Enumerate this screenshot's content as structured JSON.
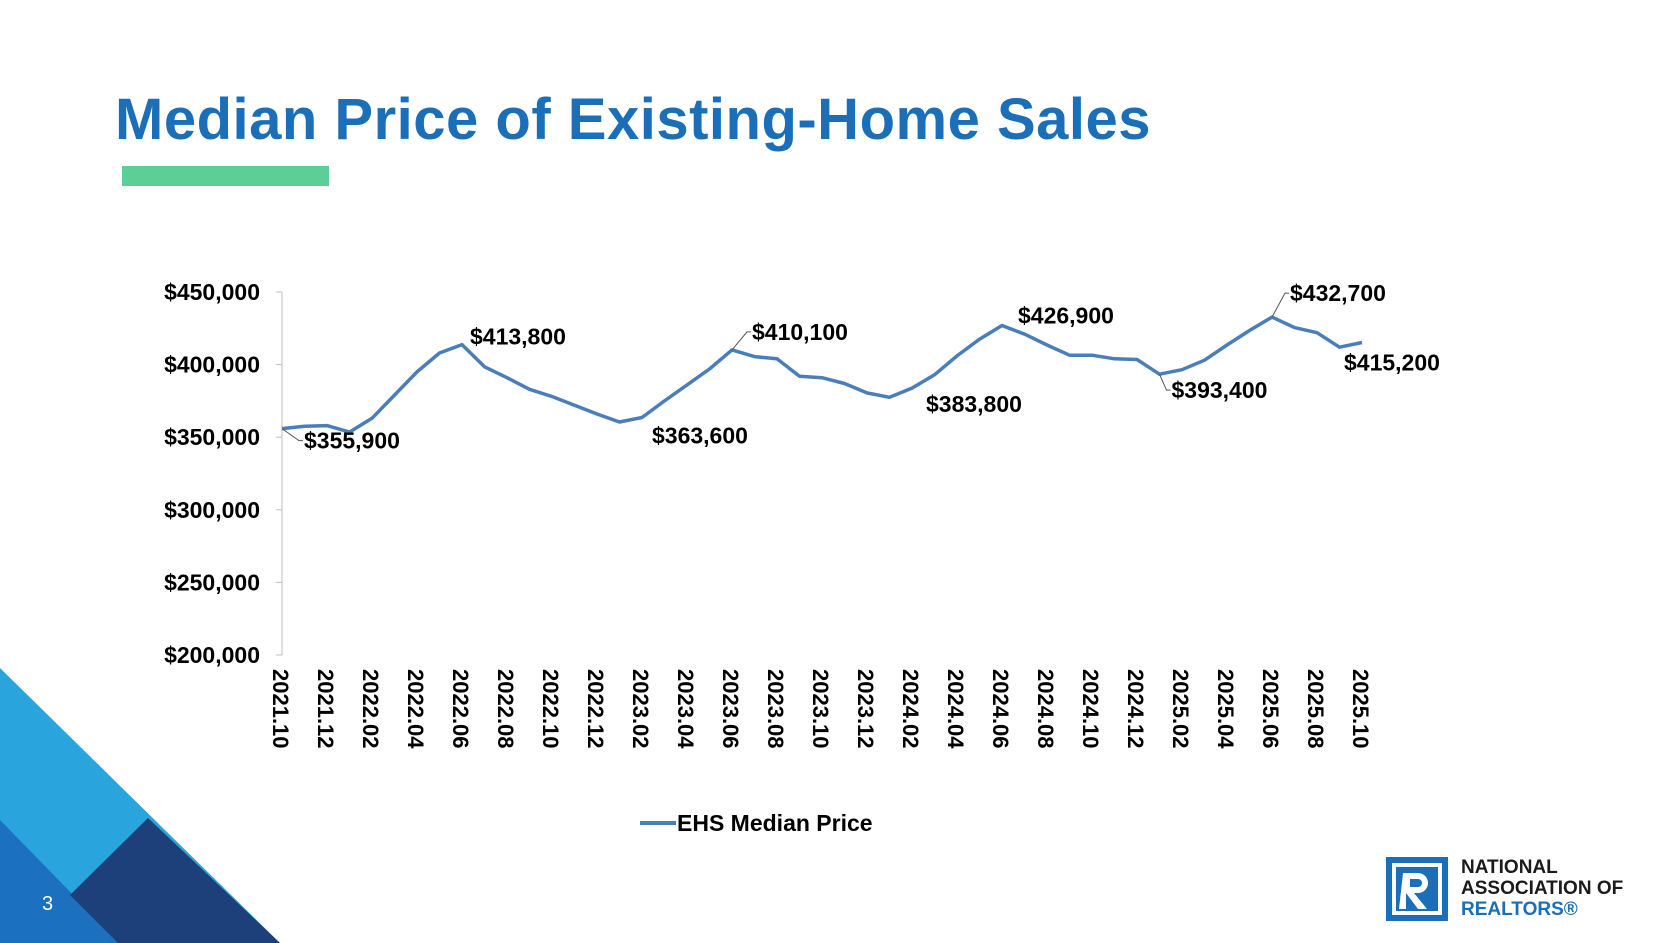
{
  "slide": {
    "title": "Median Price of Existing-Home Sales",
    "page_number": "3",
    "accent_color": "#5ccf96",
    "title_color": "#1a6fb8"
  },
  "logo": {
    "line1": "NATIONAL",
    "line2": "ASSOCIATION OF",
    "line3": "REALTORS®"
  },
  "chart_data": {
    "type": "line",
    "title": "",
    "xlabel": "",
    "ylabel": "",
    "ylim": [
      200000,
      450000
    ],
    "yticks": [
      "$200,000",
      "$250,000",
      "$300,000",
      "$350,000",
      "$400,000",
      "$450,000"
    ],
    "ytick_values": [
      200000,
      250000,
      300000,
      350000,
      400000,
      450000
    ],
    "x": [
      "2021.10",
      "2021.11",
      "2021.12",
      "2022.01",
      "2022.02",
      "2022.03",
      "2022.04",
      "2022.05",
      "2022.06",
      "2022.07",
      "2022.08",
      "2022.09",
      "2022.10",
      "2022.11",
      "2022.12",
      "2023.01",
      "2023.02",
      "2023.03",
      "2023.04",
      "2023.05",
      "2023.06",
      "2023.07",
      "2023.08",
      "2023.09",
      "2023.10",
      "2023.11",
      "2023.12",
      "2024.01",
      "2024.02",
      "2024.03",
      "2024.04",
      "2024.05",
      "2024.06",
      "2024.07",
      "2024.08",
      "2024.09",
      "2024.10",
      "2024.11",
      "2024.12",
      "2025.01",
      "2025.02",
      "2025.03",
      "2025.04",
      "2025.05",
      "2025.06",
      "2025.07",
      "2025.08",
      "2025.09",
      "2025.10"
    ],
    "xtick_labels": [
      "2021.10",
      "2021.12",
      "2022.02",
      "2022.04",
      "2022.06",
      "2022.08",
      "2022.10",
      "2022.12",
      "2023.02",
      "2023.04",
      "2023.06",
      "2023.08",
      "2023.10",
      "2023.12",
      "2024.02",
      "2024.04",
      "2024.06",
      "2024.08",
      "2024.10",
      "2024.12",
      "2025.02",
      "2025.04",
      "2025.06",
      "2025.08",
      "2025.10"
    ],
    "series": [
      {
        "name": "EHS Median Price",
        "color": "#4a7ebb",
        "values": [
          355900,
          357500,
          358000,
          353500,
          363000,
          379000,
          395000,
          408000,
          413800,
          398500,
          391000,
          383000,
          378000,
          372000,
          366000,
          360500,
          363600,
          375000,
          386000,
          397000,
          410100,
          405500,
          404000,
          392000,
          391000,
          387000,
          380500,
          377500,
          383800,
          393000,
          406000,
          417500,
          426900,
          421000,
          413500,
          406500,
          406500,
          404000,
          403500,
          393400,
          396500,
          403000,
          413500,
          423500,
          432700,
          425500,
          422000,
          412000,
          415200
        ]
      }
    ],
    "data_labels": [
      {
        "index": 0,
        "text": "$355,900"
      },
      {
        "index": 8,
        "text": "$413,800"
      },
      {
        "index": 16,
        "text": "$363,600"
      },
      {
        "index": 20,
        "text": "$410,100"
      },
      {
        "index": 28,
        "text": "$383,800"
      },
      {
        "index": 32,
        "text": "$426,900"
      },
      {
        "index": 39,
        "text": "$393,400"
      },
      {
        "index": 44,
        "text": "$432,700"
      },
      {
        "index": 48,
        "text": "$415,200"
      }
    ],
    "legend": {
      "position": "bottom",
      "entries": [
        "EHS Median Price"
      ]
    }
  }
}
